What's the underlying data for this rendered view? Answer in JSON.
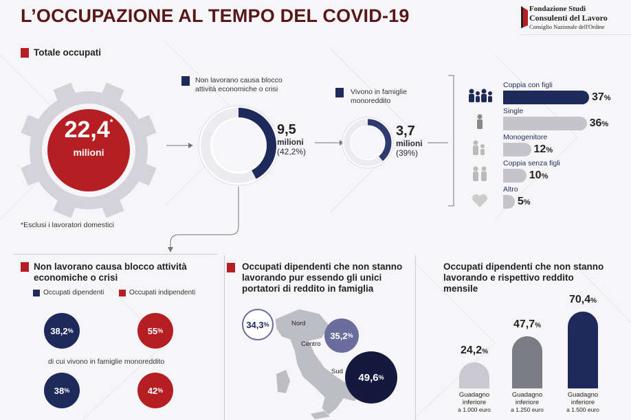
{
  "header": {
    "title": "L’OCCUPAZIONE AL TEMPO DEL COVID-19",
    "logo_line1": "Fondazione Studi",
    "logo_line2": "Consulenti del Lavoro",
    "logo_line3": "Consiglio Nazionale dell'Ordine"
  },
  "totale": {
    "heading": "Totale occupati",
    "value": "22,4",
    "asterisk": "*",
    "unit": "milioni",
    "footnote": "*Esclusi i lavoratori domestici"
  },
  "non_lavorano": {
    "caption": "Non lavorano causa blocco attività economiche o crisi",
    "value": "9,5",
    "unit": "milioni",
    "pct": "(42,2%)"
  },
  "monoreddito": {
    "caption": "Vivono in famiglie monoreddito",
    "value": "3,7",
    "unit": "milioni",
    "pct": "(39%)"
  },
  "colors": {
    "navy": "#1f2a5c",
    "red": "#b51f24",
    "gray": "#b7b7bd",
    "darkred": "#5a1718"
  },
  "chart_data": [
    {
      "type": "bar",
      "orientation": "horizontal",
      "categories": [
        "Coppia con figli",
        "Single",
        "Monogenitore",
        "Coppia senza figli",
        "Altro"
      ],
      "values": [
        37,
        36,
        12,
        10,
        5
      ],
      "labels": [
        "37",
        "36",
        "12",
        "10",
        "5"
      ],
      "unit": "%",
      "icons": [
        "family-icon",
        "person-icon",
        "parent-child-icon",
        "couple-icon",
        "heart-icon"
      ]
    },
    {
      "type": "pie",
      "title": "Non lavorano causa blocco attività economiche o crisi",
      "legend": [
        "Occupati dipendenti",
        "Occupati indipendenti"
      ],
      "subtitle": "di cui vivono in famiglie monoreddito",
      "values": {
        "dipendenti": 38.2,
        "indipendenti": 55,
        "dipendenti_monoreddito": 38,
        "indipendenti_monoreddito": 42
      },
      "labels": {
        "dipendenti": "38,2",
        "indipendenti": "55",
        "dipendenti_monoreddito": "38",
        "indipendenti_monoreddito": "42"
      }
    },
    {
      "type": "bar",
      "title": "Occupati dipendenti che non stanno lavorando pur essendo gli unici portatori di reddito in famiglia",
      "categories": [
        "Nord",
        "Centro",
        "Sud"
      ],
      "values": [
        34.3,
        35.2,
        49.6
      ],
      "labels": [
        "34,3",
        "35,2",
        "49,6"
      ],
      "unit": "%"
    },
    {
      "type": "bar",
      "title": "Occupati dipendenti che non stanno lavorando e rispettivo reddito mensile",
      "categories": [
        "Guadagno inferiore a 1.000 euro",
        "Guadagno inferiore a 1.250 euro",
        "Guadagno inferiore a 1.500 euro"
      ],
      "category_lines": [
        [
          "Guadagno",
          "inferiore",
          "a 1.000 euro"
        ],
        [
          "Guadagno",
          "inferiore",
          "a 1.250 euro"
        ],
        [
          "Guadagno",
          "inferiore",
          "a 1.500 euro"
        ]
      ],
      "values": [
        24.2,
        47.7,
        70.4
      ],
      "labels": [
        "24,2",
        "47,7",
        "70,4"
      ],
      "unit": "%",
      "bar_colors": [
        "#c9c9cf",
        "#7c7c86",
        "#1f2a5c"
      ]
    }
  ]
}
